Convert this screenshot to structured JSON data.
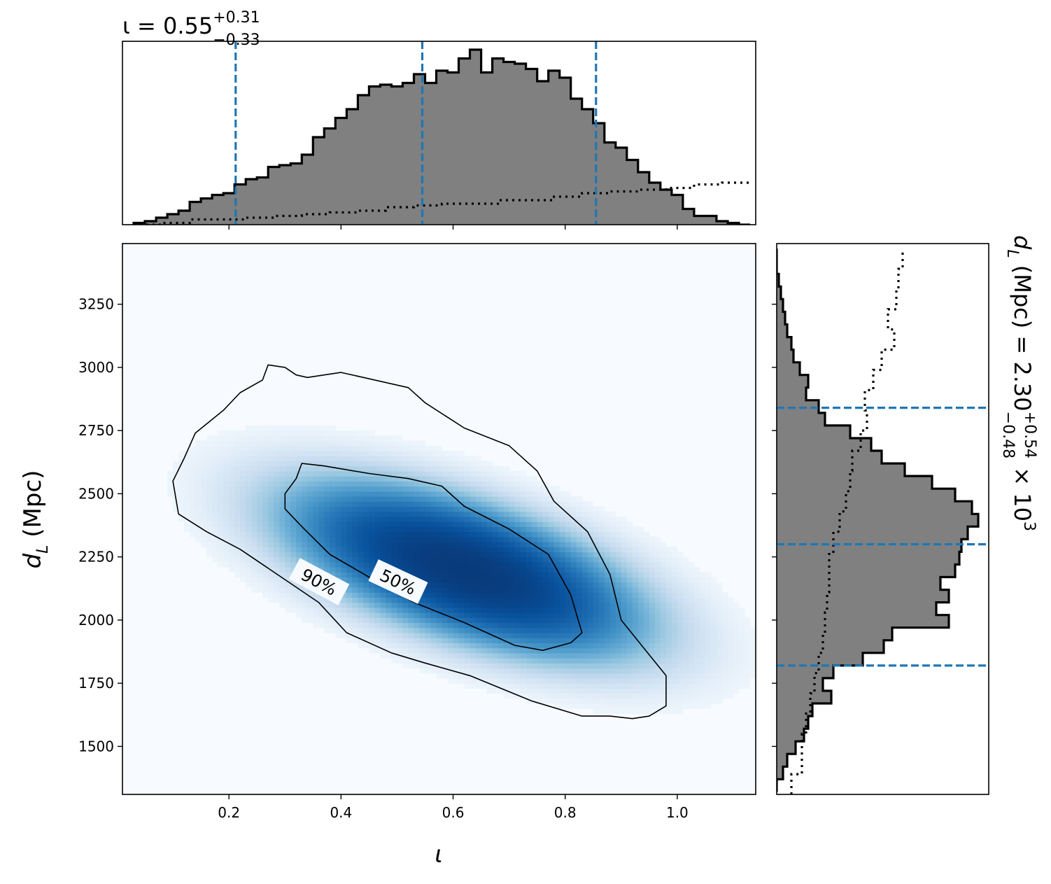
{
  "chart_data": [
    {
      "type": "heatmap",
      "panel": "joint",
      "x_param": "ι",
      "y_param": "d_L",
      "xlabel": "ι",
      "ylabel_main": "d",
      "ylabel_sub": "L",
      "ylabel_unit": " (Mpc)",
      "xlim": [
        0.01,
        1.14
      ],
      "ylim": [
        1310,
        3490
      ],
      "xticks": [
        0.2,
        0.4,
        0.6,
        0.8,
        1.0
      ],
      "xtick_labels": [
        "0.2",
        "0.4",
        "0.6",
        "0.8",
        "1.0"
      ],
      "yticks": [
        1500,
        1750,
        2000,
        2250,
        2500,
        2750,
        3000,
        3250
      ],
      "ytick_labels": [
        "1500",
        "1750",
        "2000",
        "2250",
        "2500",
        "2750",
        "3000",
        "3250"
      ],
      "colormap": "Blues",
      "density_peak": {
        "x": 0.62,
        "y": 2200
      },
      "contour_labels": [
        "50%",
        "90%"
      ],
      "contour_50": [
        [
          0.3,
          2500
        ],
        [
          0.32,
          2560
        ],
        [
          0.33,
          2620
        ],
        [
          0.37,
          2610
        ],
        [
          0.45,
          2580
        ],
        [
          0.52,
          2560
        ],
        [
          0.58,
          2530
        ],
        [
          0.62,
          2450
        ],
        [
          0.7,
          2360
        ],
        [
          0.77,
          2260
        ],
        [
          0.81,
          2100
        ],
        [
          0.83,
          1950
        ],
        [
          0.81,
          1910
        ],
        [
          0.76,
          1880
        ],
        [
          0.71,
          1900
        ],
        [
          0.62,
          1990
        ],
        [
          0.53,
          2070
        ],
        [
          0.45,
          2170
        ],
        [
          0.38,
          2260
        ],
        [
          0.33,
          2370
        ],
        [
          0.3,
          2440
        ]
      ],
      "contour_90": [
        [
          0.12,
          2640
        ],
        [
          0.14,
          2740
        ],
        [
          0.19,
          2830
        ],
        [
          0.22,
          2900
        ],
        [
          0.26,
          2950
        ],
        [
          0.27,
          3010
        ],
        [
          0.3,
          3000
        ],
        [
          0.32,
          2970
        ],
        [
          0.34,
          2960
        ],
        [
          0.4,
          2980
        ],
        [
          0.44,
          2960
        ],
        [
          0.52,
          2920
        ],
        [
          0.55,
          2860
        ],
        [
          0.62,
          2760
        ],
        [
          0.7,
          2690
        ],
        [
          0.75,
          2590
        ],
        [
          0.78,
          2470
        ],
        [
          0.84,
          2350
        ],
        [
          0.88,
          2180
        ],
        [
          0.9,
          2000
        ],
        [
          0.94,
          1890
        ],
        [
          0.98,
          1780
        ],
        [
          0.98,
          1660
        ],
        [
          0.95,
          1620
        ],
        [
          0.92,
          1610
        ],
        [
          0.88,
          1620
        ],
        [
          0.83,
          1620
        ],
        [
          0.74,
          1680
        ],
        [
          0.63,
          1780
        ],
        [
          0.55,
          1830
        ],
        [
          0.49,
          1870
        ],
        [
          0.41,
          1950
        ],
        [
          0.36,
          2070
        ],
        [
          0.3,
          2160
        ],
        [
          0.22,
          2280
        ],
        [
          0.16,
          2350
        ],
        [
          0.11,
          2420
        ],
        [
          0.1,
          2550
        ]
      ]
    },
    {
      "type": "histogram",
      "panel": "marginal-iota",
      "title_main": "ι = 0.55",
      "title_sup": "+0.31",
      "title_sub": "−0.33",
      "xlim": [
        0.01,
        1.14
      ],
      "bin_edges_start": 0.03,
      "bin_width": 0.02,
      "posterior_heights": [
        0.01,
        0.02,
        0.04,
        0.06,
        0.08,
        0.13,
        0.15,
        0.17,
        0.18,
        0.23,
        0.26,
        0.27,
        0.33,
        0.34,
        0.35,
        0.4,
        0.5,
        0.55,
        0.61,
        0.66,
        0.74,
        0.79,
        0.8,
        0.79,
        0.81,
        0.86,
        0.81,
        0.88,
        0.87,
        0.95,
        1.0,
        0.87,
        0.95,
        0.93,
        0.92,
        0.89,
        0.82,
        0.88,
        0.84,
        0.72,
        0.66,
        0.58,
        0.47,
        0.44,
        0.37,
        0.3,
        0.24,
        0.2,
        0.17,
        0.09,
        0.05,
        0.05,
        0.02,
        0.01,
        0.0
      ],
      "prior_x": [
        0.03,
        0.08,
        0.13,
        0.18,
        0.23,
        0.28,
        0.33,
        0.38,
        0.43,
        0.48,
        0.53,
        0.58,
        0.63,
        0.68,
        0.73,
        0.78,
        0.83,
        0.88,
        0.93,
        0.98,
        1.03,
        1.08,
        1.13
      ],
      "prior_heights": [
        0.0,
        0.01,
        0.03,
        0.03,
        0.04,
        0.05,
        0.06,
        0.07,
        0.08,
        0.1,
        0.11,
        0.12,
        0.12,
        0.14,
        0.14,
        0.16,
        0.18,
        0.19,
        0.2,
        0.21,
        0.23,
        0.24,
        0.25
      ],
      "quantile_lines": [
        0.212,
        0.545,
        0.855
      ],
      "quantile_color": "#1f77b4",
      "fill_color": "#808080"
    },
    {
      "type": "histogram",
      "panel": "marginal-distance",
      "title_main": "d",
      "title_sub_L": "L",
      "title_rest": " (Mpc) = 2.30",
      "title_sup": "+0.54",
      "title_sub": "−0.48",
      "title_tail": " × 10",
      "title_exp": "3",
      "ylim": [
        1310,
        3490
      ],
      "bin_edges_start": 1320,
      "bin_width": 50,
      "posterior_heights": [
        0.0,
        0.03,
        0.05,
        0.09,
        0.13,
        0.15,
        0.17,
        0.26,
        0.22,
        0.27,
        0.41,
        0.51,
        0.55,
        0.82,
        0.76,
        0.82,
        0.78,
        0.85,
        0.87,
        0.88,
        0.91,
        0.96,
        0.93,
        0.85,
        0.74,
        0.61,
        0.5,
        0.45,
        0.35,
        0.23,
        0.2,
        0.14,
        0.15,
        0.11,
        0.08,
        0.07,
        0.05,
        0.04,
        0.03,
        0.02,
        0.01,
        0.0,
        0.0
      ],
      "prior_y": [
        1310,
        1390,
        1470,
        1550,
        1630,
        1710,
        1790,
        1870,
        1950,
        2030,
        2110,
        2190,
        2270,
        2350,
        2430,
        2510,
        2590,
        2670,
        2750,
        2830,
        2910,
        2990,
        3070,
        3150,
        3230,
        3310,
        3390,
        3450
      ],
      "prior_heights": [
        0.07,
        0.12,
        0.12,
        0.14,
        0.16,
        0.18,
        0.2,
        0.22,
        0.23,
        0.24,
        0.25,
        0.25,
        0.27,
        0.3,
        0.33,
        0.35,
        0.36,
        0.4,
        0.43,
        0.42,
        0.46,
        0.5,
        0.56,
        0.53,
        0.57,
        0.58,
        0.6,
        0.62
      ],
      "quantile_lines": [
        1820,
        2300,
        2840
      ],
      "quantile_color": "#1f77b4",
      "fill_color": "#808080"
    }
  ]
}
